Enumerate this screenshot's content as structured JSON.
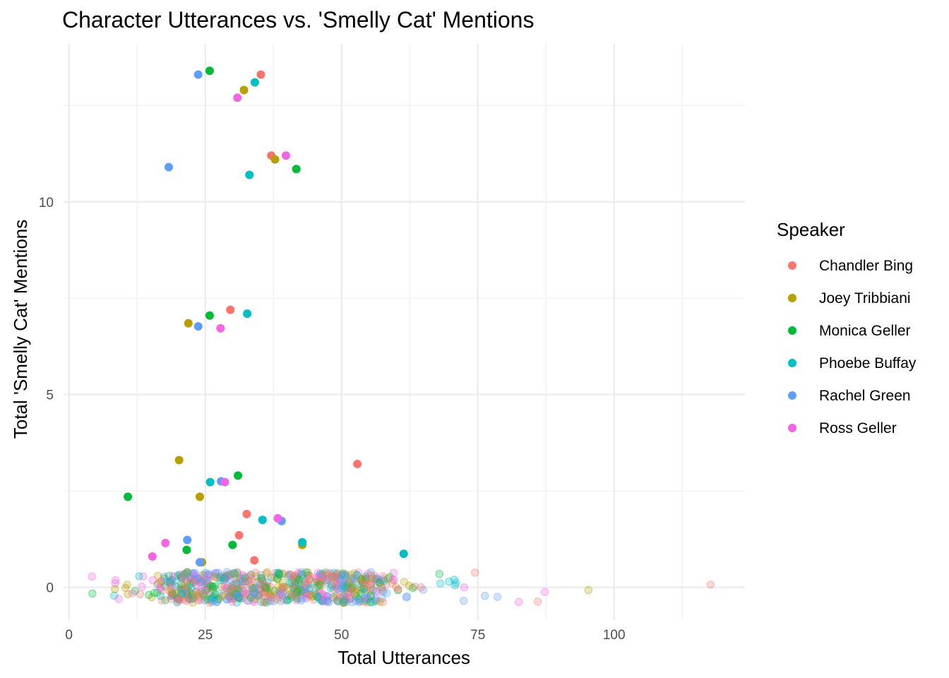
{
  "chart_data": {
    "type": "scatter",
    "title": "Character Utterances vs. 'Smelly Cat' Mentions",
    "xlabel": "Total Utterances",
    "ylabel": "Total 'Smelly Cat' Mentions",
    "xlim": [
      -1,
      124
    ],
    "ylim": [
      -0.85,
      14.1
    ],
    "x_ticks": [
      0,
      25,
      50,
      75,
      100
    ],
    "y_ticks": [
      0,
      5,
      10
    ],
    "grid": true,
    "legend": {
      "title": "Speaker",
      "position": "right"
    },
    "series": [
      {
        "name": "Chandler Bing",
        "color": "#F8766D",
        "points": [
          [
            35.2,
            13.3
          ],
          [
            37.1,
            11.2
          ],
          [
            29.6,
            7.2
          ],
          [
            52.9,
            3.2
          ],
          [
            32.6,
            1.9
          ],
          [
            31.2,
            1.35
          ],
          [
            34,
            0.7
          ]
        ]
      },
      {
        "name": "Joey Tribbiani",
        "color": "#B79F00",
        "points": [
          [
            32.1,
            12.9
          ],
          [
            37.8,
            11.1
          ],
          [
            21.9,
            6.85
          ],
          [
            20.2,
            3.3
          ],
          [
            24,
            2.35
          ],
          [
            24.4,
            0.65
          ],
          [
            42.8,
            1.1
          ]
        ]
      },
      {
        "name": "Monica Geller",
        "color": "#00BA38",
        "points": [
          [
            25.8,
            13.4
          ],
          [
            41.7,
            10.85
          ],
          [
            25.8,
            7.05
          ],
          [
            31,
            2.9
          ],
          [
            10.8,
            2.35
          ],
          [
            21.6,
            0.97
          ],
          [
            30,
            1.1
          ]
        ]
      },
      {
        "name": "Phoebe Buffay",
        "color": "#00BFC4",
        "points": [
          [
            34.1,
            13.1
          ],
          [
            33.1,
            10.7
          ],
          [
            32.7,
            7.1
          ],
          [
            25.9,
            2.73
          ],
          [
            35.5,
            1.75
          ],
          [
            42.8,
            1.17
          ],
          [
            61.4,
            0.87
          ]
        ]
      },
      {
        "name": "Rachel Green",
        "color": "#619CFF",
        "points": [
          [
            23.7,
            13.3
          ],
          [
            18.3,
            10.9
          ],
          [
            23.7,
            6.77
          ],
          [
            27.9,
            2.75
          ],
          [
            21.7,
            1.23
          ],
          [
            39,
            1.72
          ],
          [
            24,
            0.65
          ]
        ]
      },
      {
        "name": "Ross Geller",
        "color": "#F564E3",
        "points": [
          [
            30.9,
            12.7
          ],
          [
            39.8,
            11.2
          ],
          [
            27.8,
            6.72
          ],
          [
            28.6,
            2.73
          ],
          [
            38.3,
            1.79
          ],
          [
            17.7,
            1.15
          ],
          [
            15.3,
            0.8
          ]
        ]
      }
    ],
    "background_cloud": {
      "description_of_layer": "semi-transparent jittered points near zero",
      "x_range": [
        4,
        118
      ],
      "y_range": [
        -0.4,
        0.4
      ],
      "count": 700,
      "outliers": [
        [
          4.2,
          0.28,
          "Ross Geller"
        ],
        [
          4.3,
          -0.16,
          "Monica Geller"
        ],
        [
          95.3,
          -0.07,
          "Joey Tribbiani"
        ],
        [
          117.7,
          0.07,
          "Chandler Bing"
        ],
        [
          86,
          -0.37,
          "Chandler Bing"
        ],
        [
          87.3,
          -0.12,
          "Ross Geller"
        ],
        [
          82.5,
          -0.38,
          "Ross Geller"
        ],
        [
          78.6,
          -0.25,
          "Rachel Green"
        ],
        [
          76.3,
          -0.22,
          "Rachel Green"
        ],
        [
          72.4,
          -0.35,
          "Rachel Green"
        ],
        [
          74.5,
          0.38,
          "Chandler Bing"
        ],
        [
          70.8,
          0.05,
          "Phoebe Buffay"
        ]
      ]
    }
  }
}
